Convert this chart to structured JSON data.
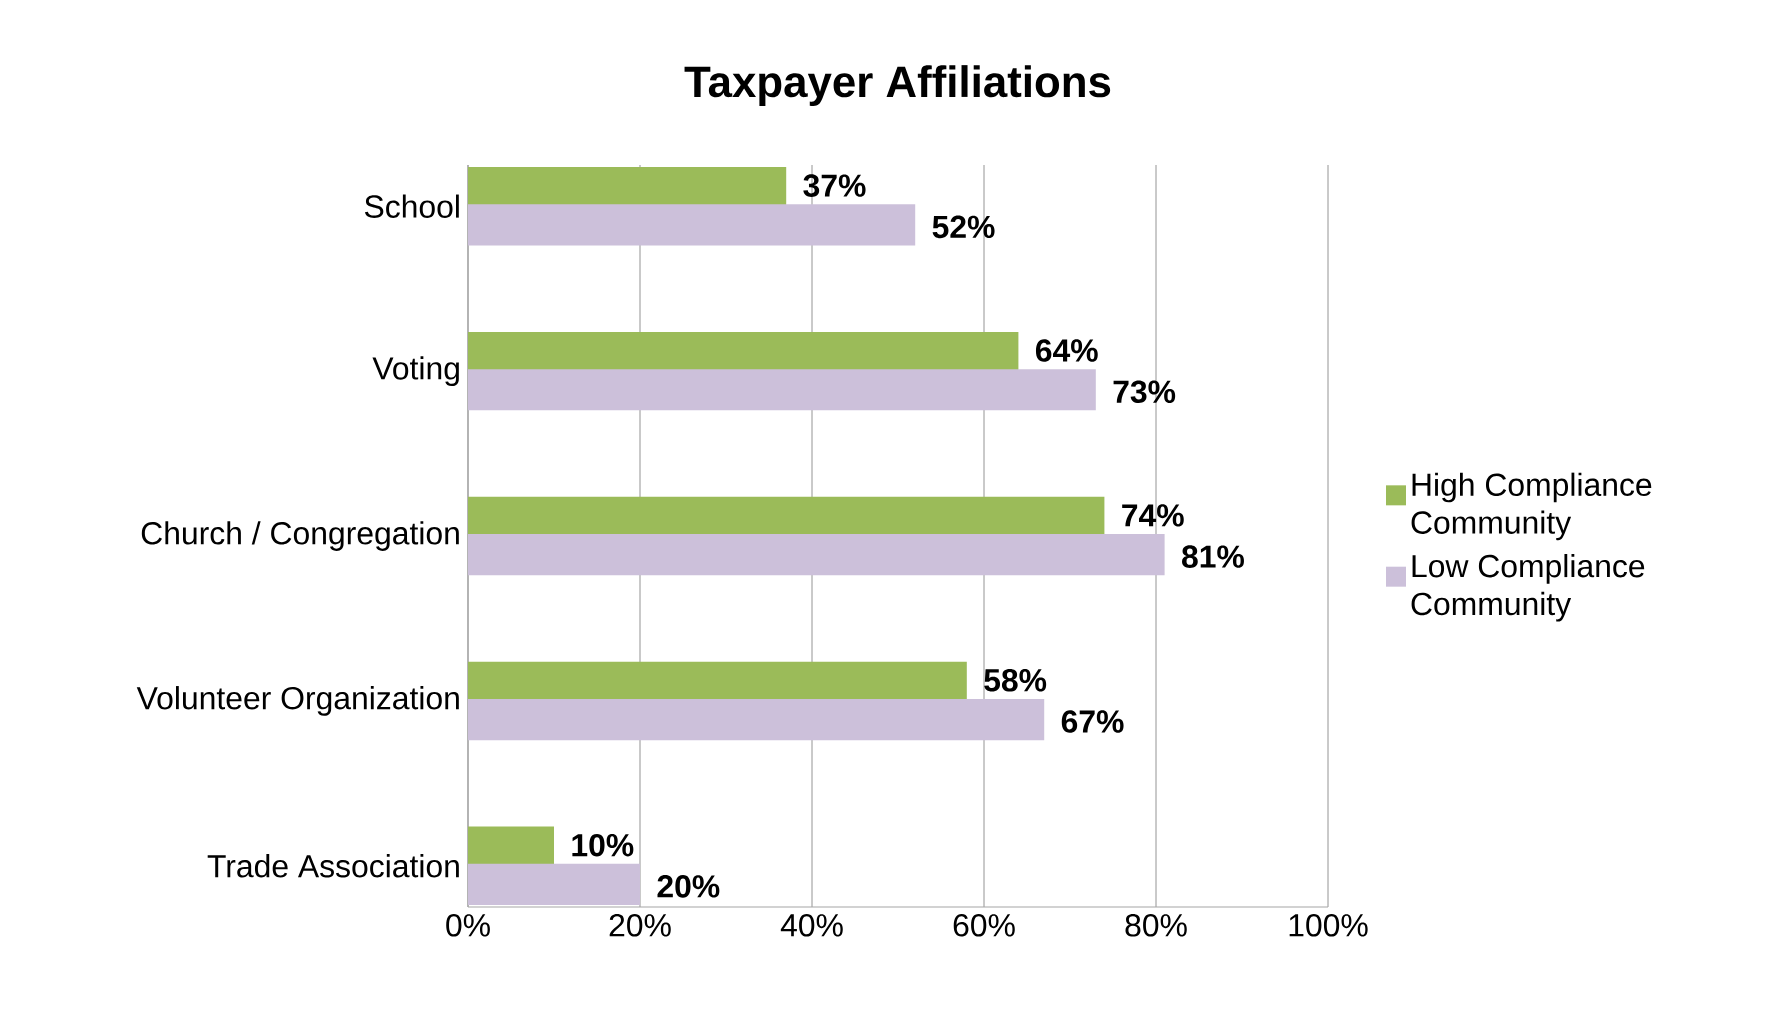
{
  "chart_data": {
    "type": "bar",
    "orientation": "horizontal",
    "title": "Taxpayer Affiliations",
    "categories": [
      "School",
      "Voting",
      "Church / Congregation",
      "Volunteer Organization",
      "Trade Association"
    ],
    "series": [
      {
        "name": "High Compliance Community",
        "color": "#9bbb59",
        "values": [
          37,
          64,
          74,
          58,
          10
        ],
        "value_labels": [
          "37%",
          "64%",
          "74%",
          "58%",
          "10%"
        ]
      },
      {
        "name": "Low Compliance Community",
        "color": "#ccc0da",
        "values": [
          52,
          73,
          81,
          67,
          20
        ],
        "value_labels": [
          "52%",
          "73%",
          "81%",
          "67%",
          "20%"
        ]
      }
    ],
    "xlim": [
      0,
      100
    ],
    "xticks": [
      {
        "value": 0,
        "label": "0%"
      },
      {
        "value": 20,
        "label": "20%"
      },
      {
        "value": 40,
        "label": "40%"
      },
      {
        "value": 60,
        "label": "60%"
      },
      {
        "value": 80,
        "label": "80%"
      },
      {
        "value": 100,
        "label": "100%"
      }
    ],
    "grid": "x",
    "legend": "right"
  }
}
